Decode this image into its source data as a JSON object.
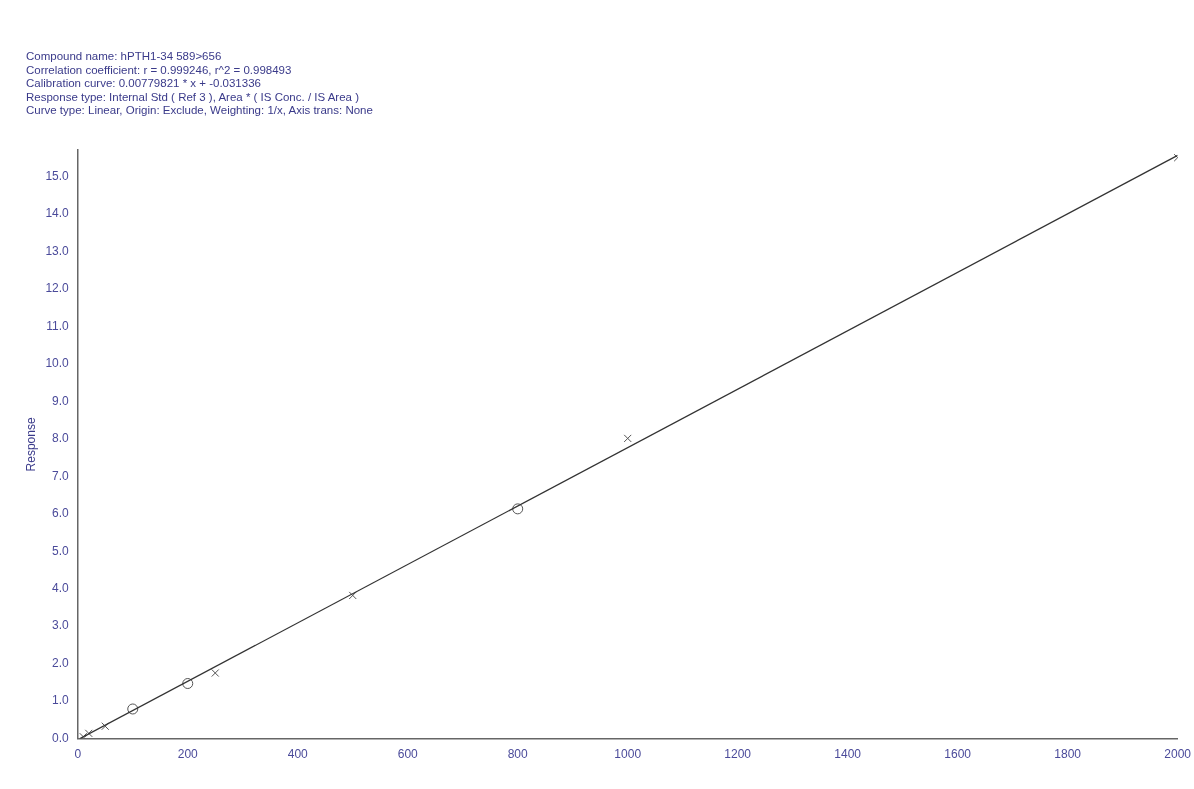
{
  "chart_data": {
    "type": "scatter",
    "title": "Compound name: hPTH1-34 589>656",
    "annotations": [
      "Correlation coefficient: r = 0.999246, r^2 = 0.998493",
      "Calibration curve: 0.00779821 * x + -0.031336",
      "Response type: Internal Std ( Ref 3 ), Area * ( IS Conc. / IS Area )",
      "Curve type: Linear, Origin: Exclude, Weighting: 1/x, Axis trans: None"
    ],
    "ylabel": "Response",
    "series": [
      {
        "type": "line",
        "color": "#333333",
        "x": [
          4,
          2000
        ],
        "values": [
          0,
          15.56
        ],
        "marker": "none"
      },
      {
        "color": "#555555",
        "marker": "cross",
        "x": [
          10,
          20,
          50,
          250,
          500,
          1000,
          2000
        ],
        "values": [
          0.05,
          0.14,
          0.33,
          1.75,
          3.82,
          8.01,
          15.5
        ]
      },
      {
        "color": "#555555",
        "marker": "circle",
        "x": [
          100,
          200,
          800
        ],
        "values": [
          0.79,
          1.47,
          6.13
        ]
      }
    ],
    "xlim": [
      0,
      2000
    ],
    "xticks": [
      0,
      200,
      400,
      600,
      800,
      1000,
      1200,
      1400,
      1600,
      1800,
      2000
    ],
    "ylim": [
      0,
      15.7
    ],
    "yticks": [
      {
        "value": 0,
        "label": "0.0"
      },
      {
        "value": 1,
        "label": "1.0"
      },
      {
        "value": 2,
        "label": "2.0"
      },
      {
        "value": 3,
        "label": "3.0"
      },
      {
        "value": 4,
        "label": "4.0"
      },
      {
        "value": 5,
        "label": "5.0"
      },
      {
        "value": 6,
        "label": "6.0"
      },
      {
        "value": 7,
        "label": "7.0"
      },
      {
        "value": 8,
        "label": "8.0"
      },
      {
        "value": 9,
        "label": "9.0"
      },
      {
        "value": 10,
        "label": "10.0"
      },
      {
        "value": 11,
        "label": "11.0"
      },
      {
        "value": 12,
        "label": "12.0"
      },
      {
        "value": 13,
        "label": "13.0"
      },
      {
        "value": 14,
        "label": "14.0"
      },
      {
        "value": 15,
        "label": "15.0"
      }
    ],
    "grid": false,
    "legend": false
  }
}
